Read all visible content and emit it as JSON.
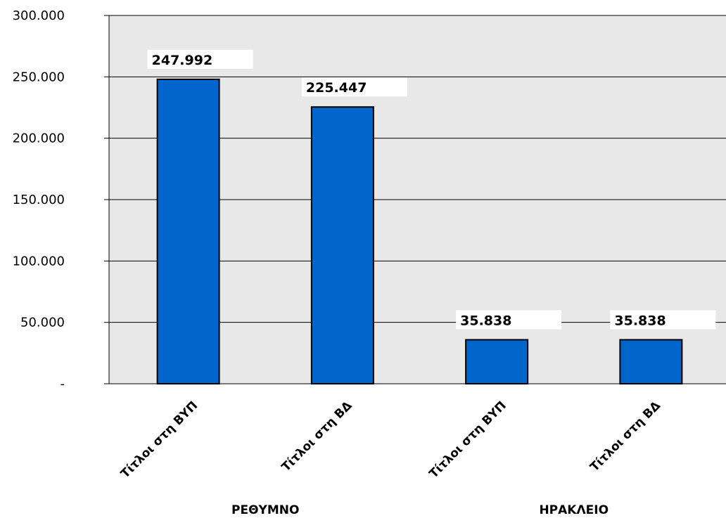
{
  "chart_data": {
    "type": "bar",
    "title": "",
    "xlabel": "",
    "ylabel": "",
    "ylim": [
      0,
      300000
    ],
    "y_ticks": [
      "-",
      "50.000",
      "100.000",
      "150.000",
      "200.000",
      "250.000",
      "300.000"
    ],
    "grid": true,
    "legend": "none",
    "bar_color": "#0066CC",
    "plot_background": "#E8E8E8",
    "categories": [
      "Τίτλοι στη ΒΥΠ",
      "Τίτλοι στη ΒΔ",
      "Τίτλοι στη ΒΥΠ",
      "Τίτλοι στη ΒΔ"
    ],
    "groups": [
      {
        "label": "ΡΕΘΥΜΝΟ",
        "categories": [
          0,
          1
        ]
      },
      {
        "label": "ΗΡΑΚΛΕΙΟ",
        "categories": [
          2,
          3
        ]
      }
    ],
    "values": [
      247992,
      225447,
      35838,
      35838
    ],
    "data_labels": [
      "247.992",
      "225.447",
      "35.838",
      "35.838"
    ]
  }
}
